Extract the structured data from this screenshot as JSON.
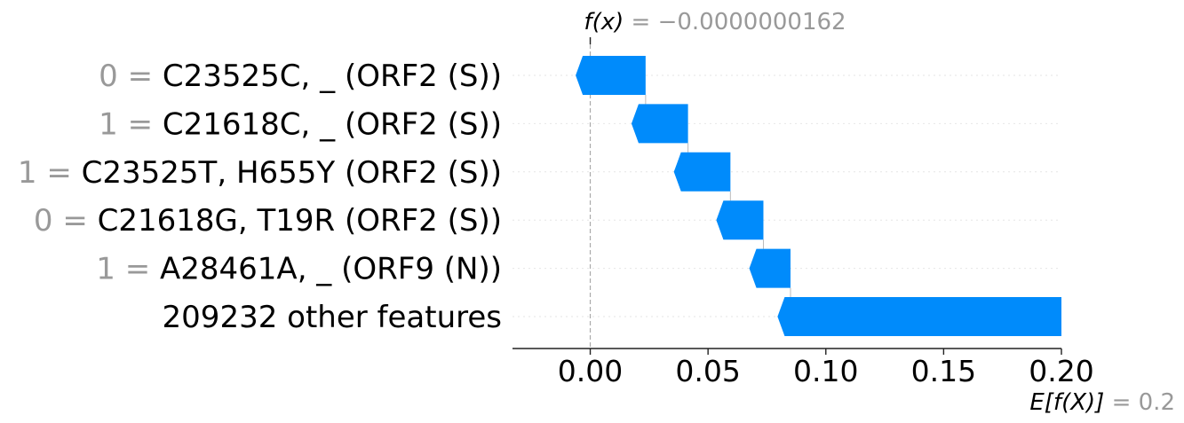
{
  "chart_data": {
    "type": "waterfall",
    "fx": {
      "label": "f(x)",
      "value_text": "= −0.0000000162",
      "value": -1.62e-08
    },
    "base": {
      "label": "E[f(X)]",
      "value_text": "= 0.2",
      "value": 0.2
    },
    "xlim": [
      -0.033,
      0.2
    ],
    "xticks": [
      {
        "value": 0.0,
        "label": "0.00"
      },
      {
        "value": 0.05,
        "label": "0.05"
      },
      {
        "value": 0.1,
        "label": "0.10"
      },
      {
        "value": 0.15,
        "label": "0.15"
      },
      {
        "value": 0.2,
        "label": "0.20"
      }
    ],
    "features": [
      {
        "value_label": "0 =",
        "name": "C23525C, _ (ORF2 (S))",
        "start": 0.0235,
        "end": -0.0062
      },
      {
        "value_label": "1 =",
        "name": "C21618C, _ (ORF2 (S))",
        "start": 0.0415,
        "end": 0.0175
      },
      {
        "value_label": "1 =",
        "name": "C23525T, H655Y (ORF2 (S))",
        "start": 0.0595,
        "end": 0.0355
      },
      {
        "value_label": "0 =",
        "name": "C21618G, T19R (ORF2 (S))",
        "start": 0.0735,
        "end": 0.0535
      },
      {
        "value_label": "1 =",
        "name": "A28461A, _ (ORF9 (N))",
        "start": 0.085,
        "end": 0.0675
      },
      {
        "value_label": "",
        "name": "209232 other features",
        "start": 0.2,
        "end": 0.0795
      }
    ],
    "bar_color": "#008bfb",
    "grid": false
  }
}
